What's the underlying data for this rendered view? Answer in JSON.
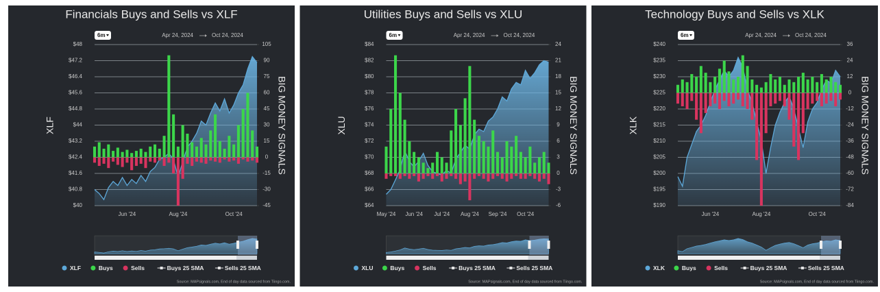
{
  "chart_data": [
    {
      "type": "combo",
      "title": "Financials Buys and Sells vs XLF",
      "range_button": "6m",
      "date_start": "Apr 24, 2024",
      "date_end": "Oct 24, 2024",
      "ylabel": "XLF",
      "y2label": "BIG MONEY SIGNALS",
      "categories": [
        null,
        null,
        null,
        null,
        null,
        null,
        null,
        "Jun '24",
        null,
        null,
        null,
        null,
        null,
        null,
        null,
        null,
        null,
        null,
        "Aug '24",
        null,
        null,
        null,
        null,
        null,
        null,
        null,
        null,
        null,
        null,
        null,
        "Oct '24",
        null,
        null,
        null,
        null,
        null
      ],
      "ylim": [
        40,
        48
      ],
      "yticks": [
        {
          "value": 40,
          "label": "$40"
        },
        {
          "value": 40.8,
          "label": "$40.8"
        },
        {
          "value": 41.6,
          "label": "$41.6"
        },
        {
          "value": 42.4,
          "label": "$42.4"
        },
        {
          "value": 43.2,
          "label": "$43.2"
        },
        {
          "value": 44,
          "label": "$44"
        },
        {
          "value": 44.8,
          "label": "$44.8"
        },
        {
          "value": 45.6,
          "label": "$45.6"
        },
        {
          "value": 46.4,
          "label": "$46.4"
        },
        {
          "value": 47.2,
          "label": "$47.2"
        },
        {
          "value": 48,
          "label": "$48"
        }
      ],
      "y2lim": [
        -45,
        105
      ],
      "y2ticks": [
        -45,
        -30,
        -15,
        0,
        15,
        30,
        45,
        60,
        75,
        90,
        105
      ],
      "series": [
        {
          "name": "XLF",
          "color": "#5da8d9",
          "kind": "area",
          "values": [
            40.8,
            40.6,
            40.3,
            40.9,
            41.2,
            41.0,
            41.4,
            41.0,
            41.3,
            41.1,
            41.5,
            41.2,
            41.7,
            41.9,
            42.3,
            42.4,
            42.6,
            42.3,
            41.4,
            42.2,
            42.9,
            43.2,
            43.6,
            44.2,
            44.0,
            44.6,
            45.1,
            44.7,
            45.3,
            44.6,
            45.0,
            45.6,
            46.0,
            46.8,
            47.4,
            47.1
          ]
        },
        {
          "name": "Buys",
          "color": "#3cd64a",
          "kind": "bar",
          "axis": "y2",
          "values": [
            10,
            14,
            8,
            12,
            6,
            9,
            5,
            7,
            4,
            6,
            8,
            5,
            10,
            12,
            8,
            20,
            95,
            40,
            10,
            30,
            22,
            14,
            10,
            18,
            12,
            25,
            40,
            15,
            8,
            20,
            12,
            30,
            45,
            60,
            25,
            10
          ]
        },
        {
          "name": "Sells",
          "color": "#d8345f",
          "kind": "bar",
          "axis": "y2",
          "values": [
            -5,
            -8,
            -6,
            -10,
            -4,
            -7,
            -9,
            -5,
            -12,
            -8,
            -6,
            -10,
            -4,
            -5,
            -3,
            -8,
            -5,
            -15,
            -45,
            -20,
            -6,
            -8,
            -4,
            -5,
            -6,
            -3,
            -4,
            -5,
            -2,
            -4,
            -3,
            -6,
            -2,
            -4,
            -3,
            -5
          ]
        }
      ],
      "legend_extra": [
        {
          "name": "Buys 25 SMA",
          "color": "#e6e6e6"
        },
        {
          "name": "Sells 25 SMA",
          "color": "#e6e6e6"
        }
      ],
      "source": "Source: MAPsignals.com, End of day data sourced from Tiingo.com."
    },
    {
      "type": "combo",
      "title": "Utilities Buys and Sells vs XLU",
      "range_button": "6m",
      "date_start": "Apr 24, 2024",
      "date_end": "Oct 24, 2024",
      "ylabel": "XLU",
      "y2label": "BIG MONEY SIGNALS",
      "categories": [
        "May '24",
        null,
        null,
        null,
        null,
        null,
        "Jun '24",
        null,
        null,
        null,
        null,
        null,
        "Jul '24",
        null,
        null,
        null,
        null,
        null,
        "Aug '24",
        null,
        null,
        null,
        null,
        null,
        "Sep '24",
        null,
        null,
        null,
        null,
        null,
        "Oct '24",
        null,
        null,
        null,
        null,
        null
      ],
      "ylim": [
        64,
        84
      ],
      "yticks": [
        {
          "value": 64,
          "label": "$64"
        },
        {
          "value": 66,
          "label": "$66"
        },
        {
          "value": 68,
          "label": "$68"
        },
        {
          "value": 70,
          "label": "$70"
        },
        {
          "value": 72,
          "label": "$72"
        },
        {
          "value": 74,
          "label": "$74"
        },
        {
          "value": 76,
          "label": "$76"
        },
        {
          "value": 78,
          "label": "$78"
        },
        {
          "value": 80,
          "label": "$80"
        },
        {
          "value": 82,
          "label": "$82"
        },
        {
          "value": 84,
          "label": "$84"
        }
      ],
      "y2lim": [
        -6,
        24
      ],
      "y2ticks": [
        -6,
        -3,
        0,
        3,
        6,
        9,
        12,
        15,
        18,
        21,
        24
      ],
      "series": [
        {
          "name": "XLU",
          "color": "#5da8d9",
          "kind": "area",
          "values": [
            65.4,
            66.0,
            67.2,
            68.5,
            70.8,
            69.5,
            68.8,
            69.5,
            70.5,
            69.0,
            68.2,
            68.0,
            67.8,
            68.4,
            68.0,
            69.8,
            70.6,
            71.5,
            71.0,
            72.8,
            73.5,
            73.2,
            74.5,
            75.0,
            76.0,
            77.5,
            77.0,
            78.5,
            79.3,
            79.0,
            80.8,
            79.8,
            80.5,
            81.5,
            82.0,
            81.8
          ]
        },
        {
          "name": "Buys",
          "color": "#3cd64a",
          "kind": "bar",
          "axis": "y2",
          "values": [
            5,
            12,
            22,
            15,
            10,
            6,
            4,
            3,
            2,
            1,
            2,
            4,
            3,
            2,
            8,
            12,
            9,
            14,
            20,
            10,
            7,
            6,
            5,
            8,
            4,
            3,
            6,
            5,
            7,
            4,
            3,
            5,
            2,
            3,
            4,
            2
          ]
        },
        {
          "name": "Sells",
          "color": "#d8345f",
          "kind": "bar",
          "axis": "y2",
          "values": [
            -1,
            -0.5,
            -0.5,
            -1,
            -0.5,
            -1,
            -0.5,
            -1.5,
            -1,
            -0.5,
            -1,
            -0.5,
            -1.5,
            -1,
            -0.5,
            -1,
            -2,
            -1.5,
            -5,
            -1,
            -0.5,
            -1,
            -1.5,
            -1,
            -0.5,
            -1,
            -1.5,
            -1,
            -0.5,
            -1,
            -1,
            -0.5,
            -1,
            -1.5,
            -1,
            -2
          ]
        }
      ],
      "legend_extra": [
        {
          "name": "Buys 25 SMA",
          "color": "#e6e6e6"
        },
        {
          "name": "Sells 25 SMA",
          "color": "#e6e6e6"
        }
      ],
      "source": "Source: MAPsignals.com, End of day data sourced from Tiingo.com."
    },
    {
      "type": "combo",
      "title": "Technology Buys and Sells vs XLK",
      "range_button": "6m",
      "date_start": "Apr 24, 2024",
      "date_end": "Oct 24, 2024",
      "ylabel": "XLK",
      "y2label": "BIG MONEY SIGNALS",
      "categories": [
        null,
        null,
        null,
        null,
        null,
        null,
        null,
        "Jun '24",
        null,
        null,
        null,
        null,
        null,
        null,
        null,
        null,
        null,
        null,
        "Aug '24",
        null,
        null,
        null,
        null,
        null,
        null,
        null,
        null,
        null,
        null,
        null,
        "Oct '24",
        null,
        null,
        null,
        null,
        null
      ],
      "ylim": [
        190,
        240
      ],
      "yticks": [
        {
          "value": 190,
          "label": "$190"
        },
        {
          "value": 195,
          "label": "$195"
        },
        {
          "value": 200,
          "label": "$200"
        },
        {
          "value": 205,
          "label": "$205"
        },
        {
          "value": 210,
          "label": "$210"
        },
        {
          "value": 215,
          "label": "$215"
        },
        {
          "value": 220,
          "label": "$220"
        },
        {
          "value": 225,
          "label": "$225"
        },
        {
          "value": 230,
          "label": "$230"
        },
        {
          "value": 235,
          "label": "$235"
        },
        {
          "value": 240,
          "label": "$240"
        }
      ],
      "y2lim": [
        -84,
        36
      ],
      "y2ticks": [
        -84,
        -72,
        -60,
        -48,
        -36,
        -24,
        -12,
        0,
        12,
        24,
        36
      ],
      "series": [
        {
          "name": "XLK",
          "color": "#5da8d9",
          "kind": "area",
          "values": [
            199,
            196,
            205,
            209,
            213,
            215,
            218,
            222,
            226,
            229,
            232,
            230,
            232,
            236,
            233,
            226,
            222,
            216,
            210,
            200,
            208,
            215,
            219,
            222,
            224,
            220,
            214,
            208,
            216,
            220,
            222,
            226,
            229,
            228,
            232,
            230
          ]
        },
        {
          "name": "Buys",
          "color": "#3cd64a",
          "kind": "bar",
          "axis": "y2",
          "values": [
            6,
            10,
            8,
            14,
            12,
            20,
            15,
            8,
            12,
            18,
            24,
            16,
            10,
            12,
            28,
            20,
            10,
            6,
            4,
            8,
            14,
            10,
            12,
            6,
            10,
            8,
            12,
            15,
            10,
            12,
            8,
            14,
            10,
            12,
            8,
            6
          ]
        },
        {
          "name": "Sells",
          "color": "#d8345f",
          "kind": "bar",
          "axis": "y2",
          "values": [
            -8,
            -10,
            -12,
            -6,
            -20,
            -30,
            -15,
            -10,
            -8,
            -12,
            -6,
            -10,
            -8,
            -5,
            -10,
            -12,
            -20,
            -50,
            -84,
            -30,
            -10,
            -8,
            -6,
            -10,
            -20,
            -40,
            -50,
            -30,
            -12,
            -8,
            -6,
            -10,
            -8,
            -6,
            -10,
            -5
          ]
        }
      ],
      "legend_extra": [
        {
          "name": "Buys 25 SMA",
          "color": "#e6e6e6"
        },
        {
          "name": "Sells 25 SMA",
          "color": "#e6e6e6"
        }
      ],
      "source": "Source: MAPsignals.com, End of day data sourced from Tiingo.com."
    }
  ]
}
